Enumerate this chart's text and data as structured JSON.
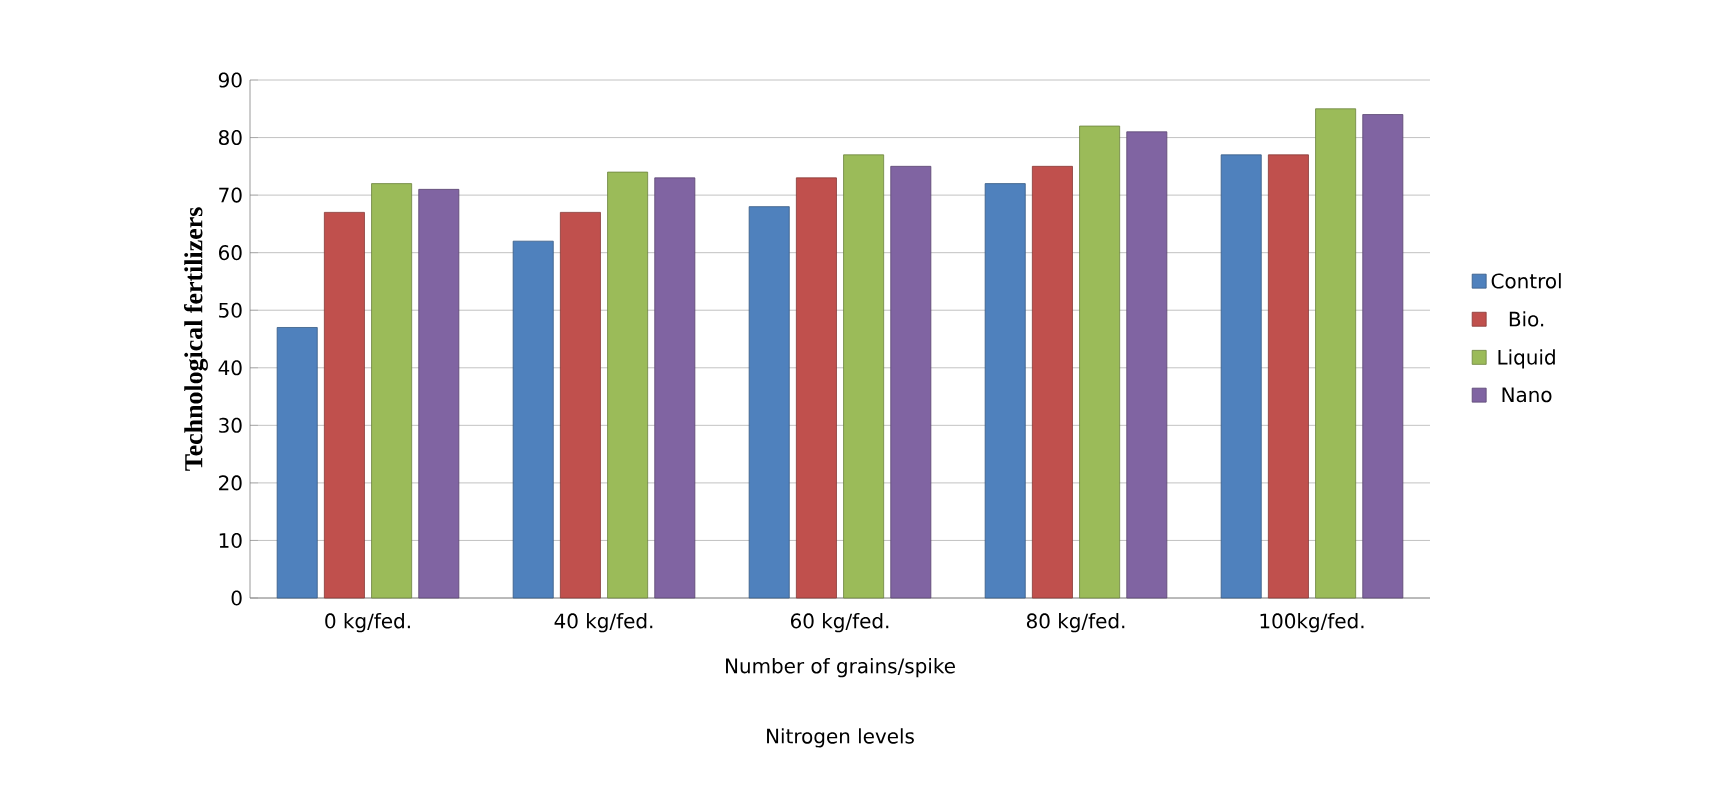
{
  "chart_data": {
    "type": "bar",
    "xlabel": "Number of grains/spike",
    "ylabel": "Technological fertilizers",
    "categories": [
      "0 kg/fed.",
      "40 kg/fed.",
      "60 kg/fed.",
      "80 kg/fed.",
      "100kg/fed."
    ],
    "series": [
      {
        "name": "Control",
        "color": "#4f81bd",
        "values": [
          47,
          62,
          68,
          72,
          77
        ]
      },
      {
        "name": "Bio.",
        "color": "#c0504d",
        "values": [
          67,
          67,
          73,
          75,
          77
        ]
      },
      {
        "name": "Liquid",
        "color": "#9bbb59",
        "values": [
          72,
          74,
          77,
          82,
          85
        ]
      },
      {
        "name": "Nano",
        "color": "#8064a2",
        "values": [
          71,
          73,
          75,
          81,
          84
        ]
      }
    ],
    "ylim": [
      0,
      90
    ],
    "yticks": [
      0,
      10,
      20,
      30,
      40,
      50,
      60,
      70,
      80,
      90
    ],
    "grid": "y",
    "legend": "right",
    "annotations": [
      "Nitrogen levels"
    ]
  }
}
